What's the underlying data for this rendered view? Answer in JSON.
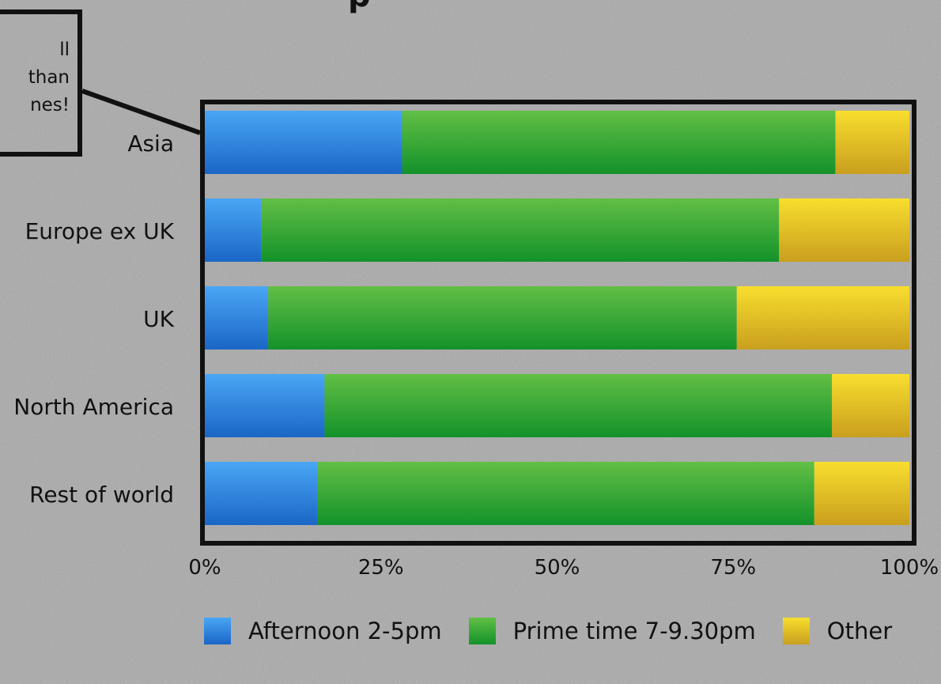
{
  "title_fragment": "p",
  "callout": {
    "text": "ll\n than\nnes!"
  },
  "chart_data": {
    "type": "bar",
    "orientation": "horizontal",
    "stacked": true,
    "categories": [
      "Asia",
      "Europe ex UK",
      "UK",
      "North America",
      "Rest of world"
    ],
    "series": [
      {
        "name": "Afternoon 2-5pm",
        "values": [
          28,
          8,
          9,
          17,
          16
        ],
        "color": "#2f86e8"
      },
      {
        "name": "Prime time 7-9.30pm",
        "values": [
          61.5,
          73.5,
          66.5,
          72,
          70.5
        ],
        "color": "#32a838"
      },
      {
        "name": "Other",
        "values": [
          10.5,
          18.5,
          24.5,
          11,
          13.5
        ],
        "color": "#f0c82a"
      }
    ],
    "xlim": [
      0,
      100
    ],
    "xticks": [
      "0%",
      "25%",
      "50%",
      "75%",
      "100%"
    ],
    "grid": false,
    "legend": "bottom"
  }
}
